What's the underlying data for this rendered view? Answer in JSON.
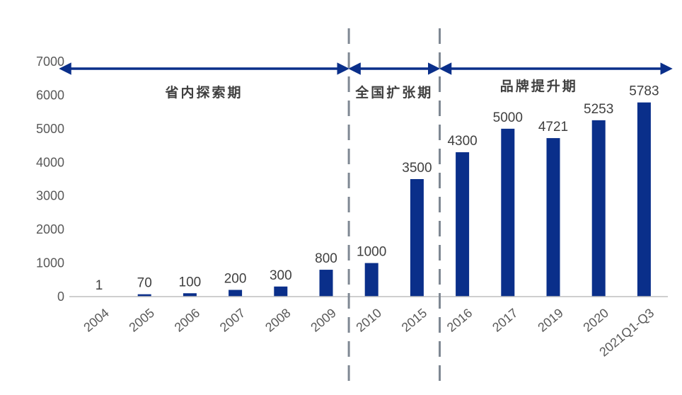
{
  "colors": {
    "bar": "#0a2f8a",
    "arrow": "#0a2f8a",
    "divider": "#7f8893",
    "axis": "#bfbfbf",
    "text": "#595959"
  },
  "chart_data": {
    "type": "bar",
    "categories": [
      "2004",
      "2005",
      "2006",
      "2007",
      "2008",
      "2009",
      "2010",
      "2015",
      "2016",
      "2017",
      "2019",
      "2020",
      "2021Q1-Q3"
    ],
    "values": [
      1,
      70,
      100,
      200,
      300,
      800,
      1000,
      3500,
      4300,
      5000,
      4721,
      5253,
      5783
    ],
    "y_ticks": [
      "0",
      "1000",
      "2000",
      "3000",
      "4000",
      "5000",
      "6000",
      "7000"
    ],
    "ylim": [
      0,
      7000
    ],
    "grid": false,
    "phases": [
      {
        "label": "省内探索期",
        "from": "2004",
        "to": "2009"
      },
      {
        "label": "全国扩张期",
        "from": "2010",
        "to": "2015"
      },
      {
        "label": "品牌提升期",
        "from": "2016",
        "to": "2021Q1-Q3"
      }
    ]
  }
}
